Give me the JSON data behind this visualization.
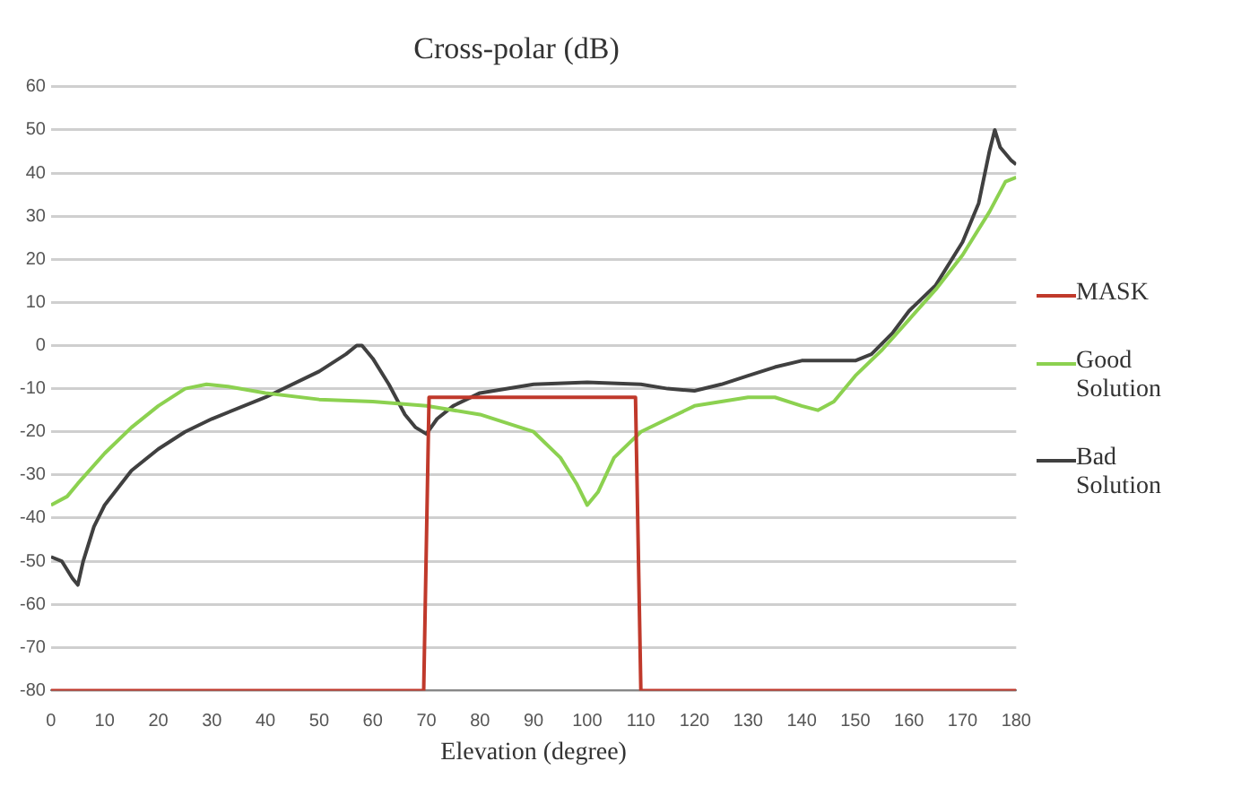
{
  "chart_data": {
    "type": "line",
    "title": "Cross-polar (dB)",
    "xlabel": "Elevation (degree)",
    "xlim": [
      0,
      180
    ],
    "xticks": [
      0,
      10,
      20,
      30,
      40,
      50,
      60,
      70,
      80,
      90,
      100,
      110,
      120,
      130,
      140,
      150,
      160,
      170,
      180
    ],
    "ylim": [
      -80,
      60
    ],
    "yticks": [
      -80,
      -70,
      -60,
      -50,
      -40,
      -30,
      -20,
      -10,
      0,
      10,
      20,
      30,
      40,
      50,
      60
    ],
    "grid": "y",
    "legend": "right",
    "marker": "none",
    "line_style": "solid",
    "series": [
      {
        "name": "MASK",
        "color": "#c0392b",
        "x": [
          0,
          69.5,
          70.5,
          109,
          110,
          180
        ],
        "values": [
          -80,
          -80,
          -12,
          -12,
          -80,
          -80
        ]
      },
      {
        "name": "Good Solution",
        "color": "#8cd150",
        "x": [
          0,
          3,
          5,
          10,
          15,
          20,
          25,
          29,
          33,
          40,
          50,
          60,
          70,
          80,
          90,
          95,
          98,
          100,
          102,
          105,
          110,
          115,
          120,
          130,
          135,
          140,
          143,
          146,
          150,
          155,
          160,
          165,
          170,
          175,
          178,
          180
        ],
        "values": [
          -37,
          -35,
          -32,
          -25,
          -19,
          -14,
          -10,
          -9,
          -9.5,
          -11,
          -12.5,
          -13,
          -14,
          -16,
          -20,
          -26,
          -32,
          -37,
          -34,
          -26,
          -20,
          -17,
          -14,
          -12,
          -12,
          -14,
          -15,
          -13,
          -7,
          -1,
          6,
          13,
          21,
          31,
          38,
          39
        ]
      },
      {
        "name": "Bad Solution",
        "color": "#404040",
        "x": [
          0,
          2,
          4,
          5,
          6,
          8,
          10,
          15,
          20,
          25,
          30,
          40,
          50,
          55,
          57,
          58,
          60,
          63,
          66,
          68,
          70,
          72,
          75,
          80,
          90,
          100,
          110,
          115,
          120,
          125,
          130,
          135,
          140,
          150,
          153,
          157,
          160,
          165,
          170,
          173,
          175,
          176,
          177,
          179,
          180
        ],
        "values": [
          -49,
          -50,
          -54,
          -55.5,
          -50,
          -42,
          -37,
          -29,
          -24,
          -20,
          -17,
          -12,
          -6,
          -2,
          0,
          0,
          -3,
          -9,
          -16,
          -19,
          -20.5,
          -17,
          -14,
          -11,
          -9,
          -8.5,
          -9,
          -10,
          -10.5,
          -9,
          -7,
          -5,
          -3.5,
          -3.5,
          -2,
          3,
          8,
          14,
          24,
          33,
          45,
          50,
          46,
          43,
          42
        ]
      }
    ]
  }
}
